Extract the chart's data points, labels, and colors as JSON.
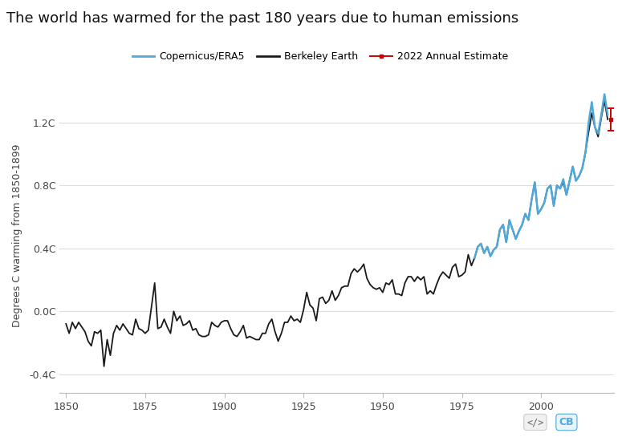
{
  "title": "The world has warmed for the past 180 years due to human emissions",
  "ylabel": "Degrees C warming from 1850-1899",
  "ylim": [
    -0.52,
    1.48
  ],
  "xlim": [
    1848,
    2023
  ],
  "yticks": [
    -0.4,
    0.0,
    0.4,
    0.8,
    1.2
  ],
  "ytick_labels": [
    "-0.4C",
    "0.0C",
    "0.4C",
    "0.8C",
    "1.2C"
  ],
  "xticks": [
    1850,
    1875,
    1900,
    1925,
    1950,
    1975,
    2000
  ],
  "background_color": "#ffffff",
  "grid_color": "#dddddd",
  "berkeley_color": "#1a1a1a",
  "copernicus_color": "#4fa8d8",
  "estimate_color": "#cc0000",
  "title_fontsize": 13,
  "legend_fontsize": 9,
  "axis_fontsize": 9,
  "berkeley_years": [
    1850,
    1851,
    1852,
    1853,
    1854,
    1855,
    1856,
    1857,
    1858,
    1859,
    1860,
    1861,
    1862,
    1863,
    1864,
    1865,
    1866,
    1867,
    1868,
    1869,
    1870,
    1871,
    1872,
    1873,
    1874,
    1875,
    1876,
    1877,
    1878,
    1879,
    1880,
    1881,
    1882,
    1883,
    1884,
    1885,
    1886,
    1887,
    1888,
    1889,
    1890,
    1891,
    1892,
    1893,
    1894,
    1895,
    1896,
    1897,
    1898,
    1899,
    1900,
    1901,
    1902,
    1903,
    1904,
    1905,
    1906,
    1907,
    1908,
    1909,
    1910,
    1911,
    1912,
    1913,
    1914,
    1915,
    1916,
    1917,
    1918,
    1919,
    1920,
    1921,
    1922,
    1923,
    1924,
    1925,
    1926,
    1927,
    1928,
    1929,
    1930,
    1931,
    1932,
    1933,
    1934,
    1935,
    1936,
    1937,
    1938,
    1939,
    1940,
    1941,
    1942,
    1943,
    1944,
    1945,
    1946,
    1947,
    1948,
    1949,
    1950,
    1951,
    1952,
    1953,
    1954,
    1955,
    1956,
    1957,
    1958,
    1959,
    1960,
    1961,
    1962,
    1963,
    1964,
    1965,
    1966,
    1967,
    1968,
    1969,
    1970,
    1971,
    1972,
    1973,
    1974,
    1975,
    1976,
    1977,
    1978,
    1979,
    1980,
    1981,
    1982,
    1983,
    1984,
    1985,
    1986,
    1987,
    1988,
    1989,
    1990,
    1991,
    1992,
    1993,
    1994,
    1995,
    1996,
    1997,
    1998,
    1999,
    2000,
    2001,
    2002,
    2003,
    2004,
    2005,
    2006,
    2007,
    2008,
    2009,
    2010,
    2011,
    2012,
    2013,
    2014,
    2015,
    2016,
    2017,
    2018,
    2019,
    2020,
    2021
  ],
  "berkeley_temps": [
    -0.08,
    -0.14,
    -0.07,
    -0.11,
    -0.07,
    -0.1,
    -0.13,
    -0.19,
    -0.22,
    -0.13,
    -0.14,
    -0.12,
    -0.35,
    -0.18,
    -0.28,
    -0.14,
    -0.09,
    -0.12,
    -0.08,
    -0.11,
    -0.14,
    -0.15,
    -0.05,
    -0.11,
    -0.12,
    -0.14,
    -0.12,
    0.03,
    0.18,
    -0.11,
    -0.1,
    -0.05,
    -0.1,
    -0.14,
    0.0,
    -0.06,
    -0.03,
    -0.09,
    -0.08,
    -0.06,
    -0.12,
    -0.11,
    -0.15,
    -0.16,
    -0.16,
    -0.15,
    -0.07,
    -0.09,
    -0.1,
    -0.07,
    -0.06,
    -0.06,
    -0.11,
    -0.15,
    -0.16,
    -0.13,
    -0.09,
    -0.17,
    -0.16,
    -0.17,
    -0.18,
    -0.18,
    -0.14,
    -0.14,
    -0.08,
    -0.05,
    -0.13,
    -0.19,
    -0.14,
    -0.07,
    -0.07,
    -0.03,
    -0.06,
    -0.05,
    -0.07,
    0.01,
    0.12,
    0.04,
    0.02,
    -0.06,
    0.08,
    0.09,
    0.05,
    0.07,
    0.13,
    0.07,
    0.1,
    0.15,
    0.16,
    0.16,
    0.24,
    0.27,
    0.25,
    0.27,
    0.3,
    0.21,
    0.17,
    0.15,
    0.14,
    0.15,
    0.12,
    0.18,
    0.17,
    0.2,
    0.11,
    0.11,
    0.1,
    0.18,
    0.22,
    0.22,
    0.19,
    0.22,
    0.2,
    0.22,
    0.11,
    0.13,
    0.11,
    0.17,
    0.22,
    0.25,
    0.23,
    0.21,
    0.28,
    0.3,
    0.22,
    0.23,
    0.25,
    0.36,
    0.29,
    0.34,
    0.41,
    0.43,
    0.37,
    0.41,
    0.35,
    0.39,
    0.41,
    0.52,
    0.55,
    0.44,
    0.58,
    0.52,
    0.46,
    0.51,
    0.55,
    0.62,
    0.58,
    0.71,
    0.82,
    0.62,
    0.65,
    0.69,
    0.78,
    0.8,
    0.67,
    0.8,
    0.78,
    0.82,
    0.74,
    0.83,
    0.92,
    0.83,
    0.86,
    0.91,
    1.01,
    1.14,
    1.26,
    1.17,
    1.11,
    1.23,
    1.34,
    1.22
  ],
  "copernicus_years": [
    1979,
    1980,
    1981,
    1982,
    1983,
    1984,
    1985,
    1986,
    1987,
    1988,
    1989,
    1990,
    1991,
    1992,
    1993,
    1994,
    1995,
    1996,
    1997,
    1998,
    1999,
    2000,
    2001,
    2002,
    2003,
    2004,
    2005,
    2006,
    2007,
    2008,
    2009,
    2010,
    2011,
    2012,
    2013,
    2014,
    2015,
    2016,
    2017,
    2018,
    2019,
    2020,
    2021
  ],
  "copernicus_temps": [
    0.34,
    0.41,
    0.43,
    0.37,
    0.41,
    0.35,
    0.39,
    0.41,
    0.52,
    0.55,
    0.44,
    0.58,
    0.52,
    0.46,
    0.51,
    0.55,
    0.62,
    0.58,
    0.71,
    0.82,
    0.62,
    0.65,
    0.69,
    0.78,
    0.8,
    0.67,
    0.8,
    0.78,
    0.84,
    0.74,
    0.83,
    0.92,
    0.83,
    0.86,
    0.91,
    1.01,
    1.2,
    1.33,
    1.17,
    1.13,
    1.25,
    1.38,
    1.25
  ],
  "estimate_year": 2022,
  "estimate_value": 1.22,
  "estimate_error": 0.07,
  "logo_text_code": "</>",
  "logo_text_cb": "CB"
}
